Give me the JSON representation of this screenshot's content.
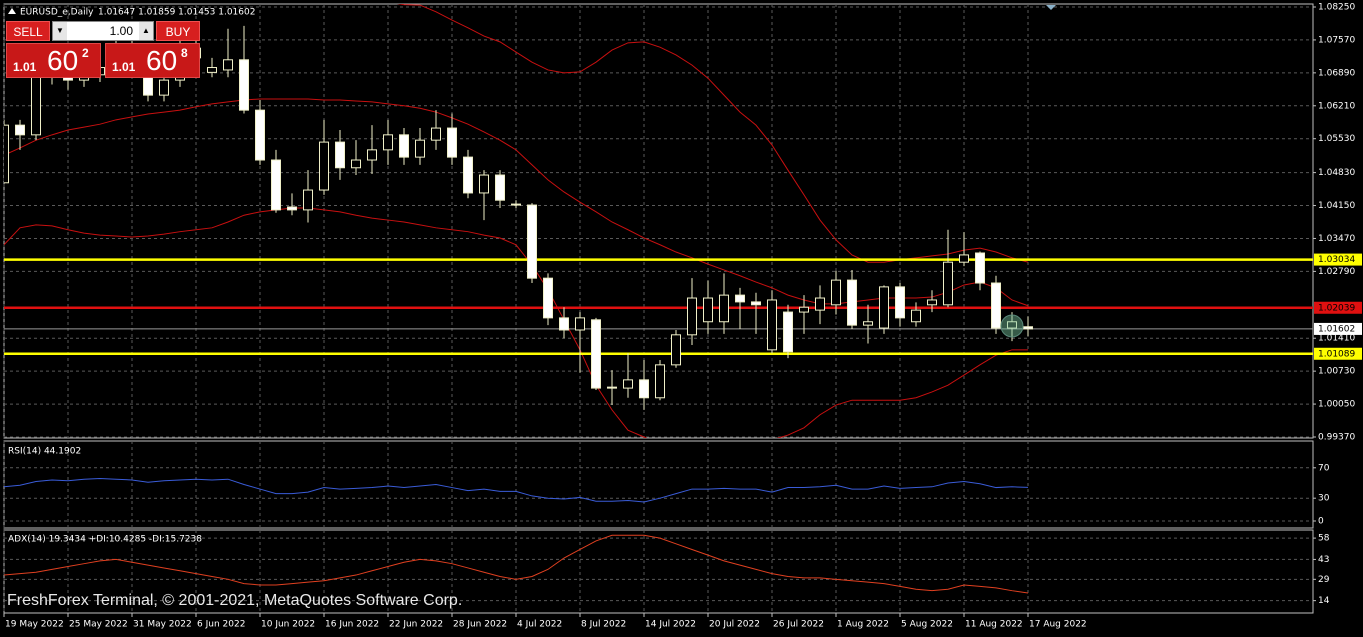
{
  "window": {
    "watermark": "FreshForex Terminal, © 2001-2021, MetaQuotes Software Corp."
  },
  "trade_panel": {
    "sell_label": "SELL",
    "buy_label": "BUY",
    "lot": "1.00",
    "sell_price": {
      "big": "1.01",
      "pips": "60",
      "fraction": "2"
    },
    "buy_price": {
      "big": "1.01",
      "pips": "60",
      "fraction": "8"
    }
  },
  "chart_data": [
    {
      "type": "candlestick",
      "title": "EURUSD_e,Daily",
      "ohlc_label": "1.01647 1.01859 1.01453 1.01602",
      "categories": [
        "19 May 2022",
        null,
        null,
        null,
        "25 May 2022",
        null,
        null,
        null,
        "31 May 2022",
        null,
        null,
        null,
        "6 Jun 2022",
        null,
        null,
        null,
        "10 Jun 2022",
        null,
        null,
        null,
        "16 Jun 2022",
        null,
        null,
        null,
        "22 Jun 2022",
        null,
        null,
        null,
        "28 Jun 2022",
        null,
        null,
        null,
        "4 Jul 2022",
        null,
        null,
        null,
        "8 Jul 2022",
        null,
        null,
        null,
        "14 Jul 2022",
        null,
        null,
        null,
        "20 Jul 2022",
        null,
        null,
        null,
        "26 Jul 2022",
        null,
        null,
        null,
        "1 Aug 2022",
        null,
        null,
        null,
        "5 Aug 2022",
        null,
        null,
        null,
        "11 Aug 2022",
        null,
        null,
        null,
        "17 Aug 2022"
      ],
      "open": [
        1.0462,
        1.0581,
        1.0561,
        1.0685,
        1.0695,
        1.0674,
        1.0685,
        1.07,
        1.073,
        1.07,
        1.0643,
        1.0674,
        1.072,
        1.069,
        1.0695,
        1.0716,
        1.0612,
        1.0509,
        1.0412,
        1.0406,
        1.0447,
        1.0546,
        1.0493,
        1.0509,
        1.053,
        1.0561,
        1.0515,
        1.055,
        1.0575,
        1.0515,
        1.0441,
        1.0478,
        1.0418,
        1.0416,
        1.0265,
        1.0183,
        1.0158,
        1.0179,
        1.0038,
        1.0038,
        1.0055,
        1.0018,
        1.0086,
        1.0148,
        1.0175,
        1.0175,
        1.023,
        1.0216,
        1.0117,
        1.0195,
        1.0195,
        1.0199,
        1.021,
        1.0261,
        1.0168,
        1.0162,
        1.0247,
        1.0175,
        1.021,
        1.021,
        1.0298,
        1.0317,
        1.0255,
        1.0162,
        1.01647
      ],
      "high": [
        1.0592,
        1.0592,
        1.0716,
        1.072,
        1.0716,
        1.07,
        1.072,
        1.076,
        1.078,
        1.074,
        1.072,
        1.076,
        1.0786,
        1.072,
        1.078,
        1.0786,
        1.0633,
        1.053,
        1.044,
        1.0488,
        1.0592,
        1.0571,
        1.055,
        1.0581,
        1.0592,
        1.0575,
        1.0575,
        1.0612,
        1.0605,
        1.053,
        1.0488,
        1.0488,
        1.0426,
        1.042,
        1.0275,
        1.0205,
        1.0195,
        1.0183,
        1.0075,
        1.011,
        1.0096,
        1.0096,
        1.0158,
        1.0265,
        1.026,
        1.0275,
        1.0245,
        1.0235,
        1.024,
        1.021,
        1.023,
        1.025,
        1.028,
        1.0282,
        1.021,
        1.025,
        1.0255,
        1.0215,
        1.024,
        1.0365,
        1.036,
        1.032,
        1.027,
        1.0195,
        1.01859
      ],
      "low": [
        1.0462,
        1.053,
        1.055,
        1.0665,
        1.0654,
        1.066,
        1.067,
        1.068,
        1.07,
        1.063,
        1.063,
        1.066,
        1.07,
        1.068,
        1.068,
        1.0605,
        1.0499,
        1.04,
        1.0395,
        1.038,
        1.0437,
        1.0468,
        1.0478,
        1.048,
        1.0499,
        1.0499,
        1.0499,
        1.053,
        1.0499,
        1.043,
        1.0385,
        1.041,
        1.041,
        1.0255,
        1.0168,
        1.0141,
        1.007,
        1.0034,
        1.0003,
        1.0018,
        0.9993,
        1.0013,
        1.008,
        1.0127,
        1.015,
        1.015,
        1.016,
        1.015,
        1.011,
        1.01,
        1.015,
        1.017,
        1.019,
        1.016,
        1.013,
        1.015,
        1.0165,
        1.0165,
        1.0195,
        1.0205,
        1.029,
        1.024,
        1.015,
        1.0135,
        1.01453
      ],
      "close": [
        1.0581,
        1.0561,
        1.0685,
        1.0695,
        1.0674,
        1.0685,
        1.07,
        1.073,
        1.074,
        1.0643,
        1.0674,
        1.072,
        1.074,
        1.07,
        1.0716,
        1.0612,
        1.0509,
        1.0406,
        1.0406,
        1.0447,
        1.0546,
        1.0493,
        1.0509,
        1.053,
        1.0561,
        1.0515,
        1.055,
        1.0575,
        1.0515,
        1.0441,
        1.0478,
        1.0426,
        1.0416,
        1.0265,
        1.0183,
        1.0158,
        1.0183,
        1.0038,
        1.004,
        1.0055,
        1.0018,
        1.0086,
        1.0148,
        1.0224,
        1.0224,
        1.023,
        1.0216,
        1.021,
        1.022,
        1.0113,
        1.0205,
        1.0224,
        1.0261,
        1.0168,
        1.0175,
        1.0247,
        1.0183,
        1.0199,
        1.022,
        1.0298,
        1.0313,
        1.0255,
        1.0162,
        1.0175,
        1.01602
      ],
      "up_color": "#000000",
      "down_color": "#ffffff",
      "wick_color": "#f0f0c8",
      "bands": {
        "color": "#c81010",
        "upper": [
          1.088,
          1.089,
          1.09,
          1.0905,
          1.091,
          1.0912,
          1.0915,
          1.0915,
          1.0914,
          1.0912,
          1.091,
          1.0905,
          1.09,
          1.0895,
          1.089,
          1.0885,
          1.088,
          1.087,
          1.0865,
          1.086,
          1.0855,
          1.085,
          1.0845,
          1.084,
          1.0835,
          1.083,
          1.0829,
          1.0815,
          1.0798,
          1.0782,
          1.0765,
          1.0753,
          1.0732,
          1.0711,
          1.0695,
          1.0689,
          1.0691,
          1.0711,
          1.0736,
          1.0751,
          1.0753,
          1.0742,
          1.0726,
          1.0705,
          1.0678,
          1.0643,
          1.0608,
          1.0581,
          1.054,
          1.0488,
          1.0437,
          1.0385,
          1.0344,
          1.0313,
          1.0298,
          1.0298,
          1.0303,
          1.0307,
          1.0311,
          1.0315,
          1.0323,
          1.0327,
          1.0319,
          1.0307,
          1.0298
        ],
        "middle": [
          1.0519,
          1.0534,
          1.055,
          1.0561,
          1.0571,
          1.0577,
          1.0583,
          1.0592,
          1.0598,
          1.0604,
          1.0608,
          1.0612,
          1.0619,
          1.0625,
          1.0629,
          1.0633,
          1.0635,
          1.0635,
          1.0635,
          1.0635,
          1.0633,
          1.0633,
          1.0631,
          1.0629,
          1.0625,
          1.0621,
          1.0616,
          1.0608,
          1.0596,
          1.0583,
          1.0567,
          1.055,
          1.053,
          1.0499,
          1.0468,
          1.0443,
          1.0422,
          1.0402,
          1.0381,
          1.0365,
          1.0348,
          1.0334,
          1.0319,
          1.0307,
          1.0294,
          1.0282,
          1.027,
          1.0257,
          1.0245,
          1.023,
          1.022,
          1.0212,
          1.0212,
          1.0216,
          1.022,
          1.0224,
          1.0224,
          1.0224,
          1.0226,
          1.0236,
          1.0251,
          1.0257,
          1.0245,
          1.022,
          1.0208
        ],
        "lower": [
          1.0334,
          1.0369,
          1.0375,
          1.0373,
          1.0365,
          1.0358,
          1.0354,
          1.0352,
          1.035,
          1.0352,
          1.0356,
          1.0361,
          1.0365,
          1.0369,
          1.0381,
          1.0395,
          1.0402,
          1.0406,
          1.041,
          1.041,
          1.0406,
          1.0402,
          1.0395,
          1.0389,
          1.0385,
          1.0381,
          1.0375,
          1.0369,
          1.0365,
          1.0361,
          1.0354,
          1.0348,
          1.0334,
          1.0292,
          1.0241,
          1.0179,
          1.0117,
          1.0044,
          0.9993,
          0.9951,
          0.9937,
          0.9921,
          0.991,
          0.9906,
          0.9906,
          0.991,
          0.9914,
          0.9921,
          0.9931,
          0.9941,
          0.9956,
          0.9983,
          1.0003,
          1.0013,
          1.0013,
          1.0013,
          1.0013,
          1.0018,
          1.003,
          1.0044,
          1.0065,
          1.0086,
          1.0106,
          1.0117,
          1.0117
        ]
      },
      "levels": [
        {
          "value": 1.03034,
          "color": "#ffff00"
        },
        {
          "value": 1.02039,
          "color": "#e01010"
        },
        {
          "value": 1.01602,
          "color": "#9a9a9a"
        },
        {
          "value": 1.01089,
          "color": "#ffff00"
        }
      ],
      "ylim": [
        0.9937,
        1.0825
      ],
      "yticks": [
        {
          "value": 1.0825,
          "label": "1.08250"
        },
        {
          "value": 1.0757,
          "label": "1.07570"
        },
        {
          "value": 1.0689,
          "label": "1.06890"
        },
        {
          "value": 1.0621,
          "label": "1.06210"
        },
        {
          "value": 1.0553,
          "label": "1.05530"
        },
        {
          "value": 1.0483,
          "label": "1.04830"
        },
        {
          "value": 1.0415,
          "label": "1.04150"
        },
        {
          "value": 1.0347,
          "label": "1.03470"
        },
        {
          "value": 1.0279,
          "label": "1.02790"
        },
        {
          "value": 1.0141,
          "label": "1.01410"
        },
        {
          "value": 1.0073,
          "label": "1.00730"
        },
        {
          "value": 1.0005,
          "label": "1.00050"
        },
        {
          "value": 0.9937,
          "label": "0.99370"
        }
      ],
      "grid": true
    },
    {
      "type": "line",
      "title": "RSI(14) 44.1902",
      "color": "#3a5cd8",
      "values": [
        45,
        47,
        52,
        54,
        53,
        55,
        56,
        55,
        54,
        51,
        53,
        54,
        55,
        54,
        55,
        48,
        42,
        36,
        36,
        38,
        44,
        42,
        43,
        44,
        46,
        44,
        46,
        48,
        44,
        40,
        42,
        39,
        39,
        33,
        30,
        29,
        31,
        26,
        26,
        27,
        25,
        30,
        36,
        42,
        42,
        43,
        42,
        42,
        38,
        44,
        44,
        45,
        47,
        42,
        42,
        46,
        43,
        44,
        45,
        50,
        52,
        49,
        44,
        45,
        44.1902
      ],
      "ylim": [
        0,
        100
      ],
      "yticks": [
        70,
        30,
        0
      ],
      "grid": true
    },
    {
      "type": "line",
      "title": "ADX(14) 19.3434 +DI:10.4285 -DI:15.7238",
      "color": "#e04020",
      "values": [
        32,
        33,
        34,
        36,
        38,
        40,
        42,
        43,
        41,
        39,
        37,
        35,
        33,
        31,
        29,
        26,
        25,
        25,
        26,
        27,
        28,
        30,
        32,
        35,
        38,
        41,
        43,
        42,
        40,
        37,
        34,
        31,
        29,
        31,
        36,
        44,
        50,
        56,
        60,
        60,
        60,
        58,
        54,
        50,
        46,
        42,
        39,
        36,
        33,
        31,
        30,
        30,
        29,
        28,
        27,
        26,
        24,
        22,
        21,
        22,
        25,
        24,
        23,
        21,
        19.3434
      ],
      "ylim": [
        6,
        63
      ],
      "yticks": [
        58,
        43,
        29,
        14
      ],
      "grid": true
    }
  ]
}
